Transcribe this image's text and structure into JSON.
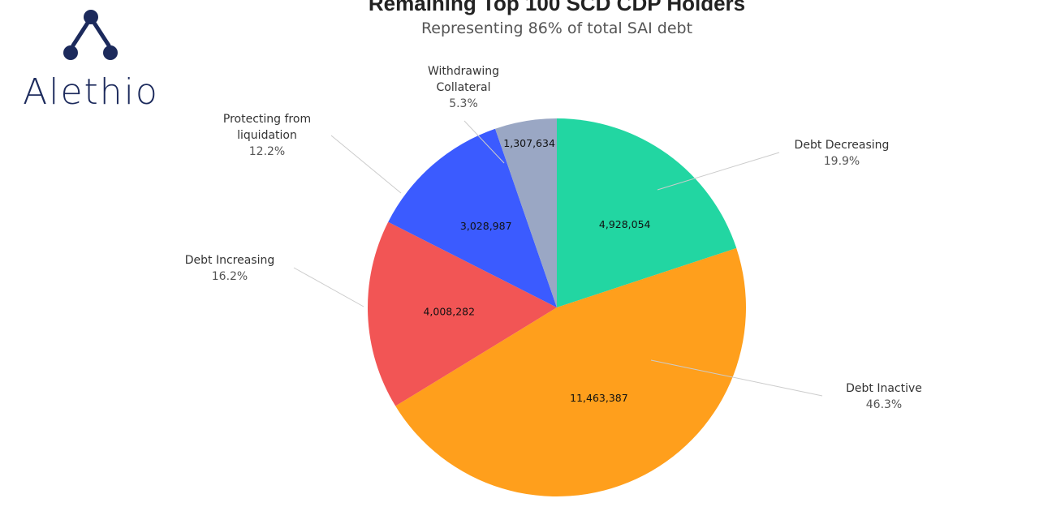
{
  "brand": {
    "name": "Alethio"
  },
  "chart_data": {
    "type": "pie",
    "title": "Remaining Top 100 SCD CDP Holders",
    "subtitle": "Representing 86% of total SAI debt",
    "slices": [
      {
        "label": [
          "Debt Decreasing"
        ],
        "percent": "19.9%",
        "value": 4928054,
        "value_label": "4,928,054",
        "color": "#22d6a2"
      },
      {
        "label": [
          "Debt Inactive"
        ],
        "percent": "46.3%",
        "value": 11463387,
        "value_label": "11,463,387",
        "color": "#ff9f1c"
      },
      {
        "label": [
          "Debt Increasing"
        ],
        "percent": "16.2%",
        "value": 4008282,
        "value_label": "4,008,282",
        "color": "#f25555"
      },
      {
        "label": [
          "Protecting from",
          "liquidation"
        ],
        "percent": "12.2%",
        "value": 3028987,
        "value_label": "3,028,987",
        "color": "#3b5bff"
      },
      {
        "label": [
          "Withdrawing",
          "Collateral"
        ],
        "percent": "5.3%",
        "value": 1307634,
        "value_label": "1,307,634",
        "color": "#9aa7c4"
      }
    ]
  }
}
